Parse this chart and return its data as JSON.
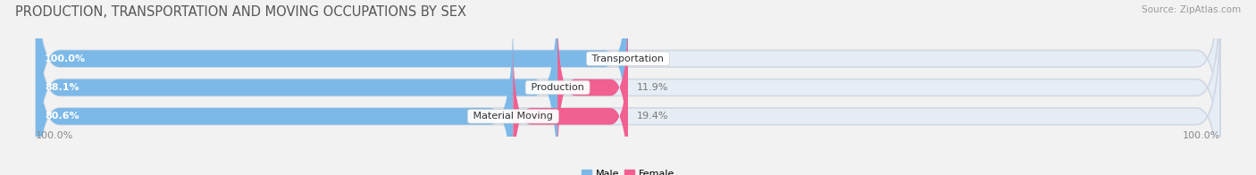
{
  "title": "PRODUCTION, TRANSPORTATION AND MOVING OCCUPATIONS BY SEX",
  "source": "Source: ZipAtlas.com",
  "categories": [
    "Transportation",
    "Production",
    "Material Moving"
  ],
  "male_values": [
    100.0,
    88.1,
    80.6
  ],
  "female_values": [
    0.0,
    11.9,
    19.4
  ],
  "male_color": "#7cb9e8",
  "female_color": "#f06090",
  "background_color": "#f2f2f2",
  "bar_bg_color": "#e6edf5",
  "bar_height": 0.58,
  "title_fontsize": 10.5,
  "source_fontsize": 7.5,
  "label_fontsize": 8,
  "pct_fontsize": 8,
  "tick_fontsize": 8,
  "legend_fontsize": 8,
  "xlim_left": -105,
  "xlim_right": 105,
  "axis_pct_left": "100.0%",
  "axis_pct_right": "100.0%"
}
